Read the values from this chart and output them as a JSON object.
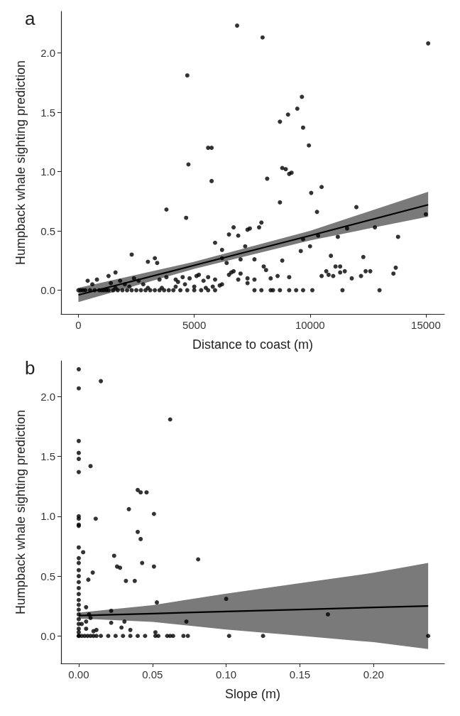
{
  "chart_data": [
    {
      "type": "scatter",
      "title": "a",
      "xlabel": "Distance to coast (m)",
      "ylabel": "Humpback whale sighting prediction",
      "xlim": [
        -750,
        15800
      ],
      "ylim": [
        -0.2,
        2.35
      ],
      "xticks": [
        0,
        5000,
        10000,
        15000
      ],
      "yticks": [
        {
          "value": 0,
          "label": "0.0"
        },
        {
          "value": 0.5,
          "label": "0.5"
        },
        {
          "value": 1,
          "label": "1.0"
        },
        {
          "value": 1.5,
          "label": "1.5"
        },
        {
          "value": 2,
          "label": "2.0"
        }
      ],
      "grid": false,
      "series": [
        {
          "marker": "circle",
          "color": "#000000",
          "x": [
            6850,
            7950,
            15100,
            4700,
            9650,
            9450,
            9050,
            8700,
            9700,
            5600,
            5750,
            4750,
            9950,
            5750,
            8150,
            8800,
            8950,
            9100,
            9200,
            10500,
            10050,
            3800,
            4650,
            8700,
            10300,
            12000,
            15000,
            11600,
            12800,
            7900,
            7800,
            7400,
            7300,
            6700,
            6900,
            6500,
            5900,
            6200,
            9700,
            10350,
            11200,
            13800,
            2300,
            3400,
            3300,
            3000,
            7200,
            6400,
            7000,
            6200,
            7600,
            8000,
            8100,
            8800,
            9600,
            10000,
            10900,
            11100,
            11300,
            11300,
            12300,
            12400,
            12600,
            13600,
            13700,
            11500,
            10700,
            10500,
            10800,
            11000,
            11800,
            12200,
            9100,
            7300,
            7300,
            7600,
            8300,
            8600,
            7000,
            6700,
            6600,
            6500,
            6900,
            5100,
            5200,
            5600,
            5900,
            6100,
            6200,
            5400,
            4800,
            4200,
            4500,
            4300,
            4600,
            3800,
            3500,
            2600,
            2400,
            1800,
            1600,
            1300,
            1400,
            800,
            400,
            600,
            2000,
            2800,
            0,
            100,
            200,
            300,
            500,
            700,
            900,
            1100,
            1200,
            1300,
            1500,
            1700,
            1900,
            2100,
            2300,
            2500,
            2700,
            2900,
            3100,
            3300,
            3500,
            3700,
            3900,
            4100,
            4400,
            4700,
            5000,
            5300,
            5600,
            5900,
            7600,
            7900,
            8300,
            8400,
            8700,
            9100,
            9400,
            9700,
            10100,
            11400,
            13000,
            1000,
            1600,
            2200,
            3000,
            3600,
            4200,
            5000,
            5500,
            5800
          ],
          "values": [
            2.23,
            2.13,
            2.08,
            1.81,
            1.63,
            1.53,
            1.48,
            1.42,
            1.37,
            1.2,
            1.2,
            1.06,
            1.22,
            0.92,
            0.94,
            1.03,
            1.02,
            0.98,
            0.99,
            0.87,
            0.82,
            0.68,
            0.61,
            0.74,
            0.66,
            0.7,
            0.64,
            0.52,
            0.53,
            0.57,
            0.53,
            0.52,
            0.51,
            0.53,
            0.46,
            0.47,
            0.4,
            0.34,
            0.43,
            0.46,
            0.45,
            0.45,
            0.3,
            0.23,
            0.27,
            0.24,
            0.37,
            0.23,
            0.26,
            0.27,
            0.26,
            0.2,
            0.17,
            0.25,
            0.33,
            0.37,
            0.29,
            0.2,
            0.2,
            0.15,
            0.28,
            0.16,
            0.16,
            0.14,
            0.19,
            0.16,
            0.16,
            0.12,
            0.13,
            0.12,
            0.1,
            0.12,
            0.11,
            0.1,
            0.06,
            0.09,
            0.1,
            0.12,
            0.14,
            0.16,
            0.15,
            0.13,
            0.09,
            0.12,
            0.13,
            0.11,
            0.09,
            0.04,
            0.05,
            0.08,
            0.1,
            0.09,
            0.11,
            0.07,
            0.05,
            0.11,
            0.09,
            0.08,
            0.1,
            0.08,
            0.15,
            0.12,
            0.06,
            0.09,
            0.08,
            0.05,
            0.05,
            0.05,
            0,
            0,
            0,
            0,
            0,
            0,
            0,
            0,
            0,
            0,
            0,
            0,
            0,
            0,
            0,
            0,
            0,
            0,
            0,
            0,
            0,
            0,
            0,
            0,
            0,
            0,
            0,
            0,
            0,
            0,
            0,
            0,
            0,
            0,
            0,
            0,
            0,
            0,
            0,
            0,
            0,
            0,
            0.02,
            0.03,
            0.02,
            0.02,
            0.03,
            0.03,
            0.02,
            0.03
          ]
        },
        {
          "type": "line",
          "color": "#000000",
          "x": [
            0,
            5000,
            10000,
            15100
          ],
          "values": [
            -0.04,
            0.21,
            0.46,
            0.72
          ],
          "lower": [
            -0.1,
            0.18,
            0.42,
            0.62
          ],
          "upper": [
            0.02,
            0.24,
            0.5,
            0.83
          ]
        }
      ]
    },
    {
      "type": "scatter",
      "title": "b",
      "xlabel": "Slope (m)",
      "ylabel": "Humpback whale sighting prediction",
      "xlim": [
        -0.012,
        0.248
      ],
      "ylim": [
        -0.23,
        2.3
      ],
      "xticks": [
        {
          "value": 0,
          "label": "0.00"
        },
        {
          "value": 0.05,
          "label": "0.05"
        },
        {
          "value": 0.1,
          "label": "0.10"
        },
        {
          "value": 0.15,
          "label": "0.15"
        },
        {
          "value": 0.2,
          "label": "0.20"
        }
      ],
      "yticks": [
        {
          "value": 0,
          "label": "0.0"
        },
        {
          "value": 0.5,
          "label": "0.5"
        },
        {
          "value": 1,
          "label": "1.0"
        },
        {
          "value": 1.5,
          "label": "1.5"
        },
        {
          "value": 2,
          "label": "2.0"
        }
      ],
      "grid": false,
      "series": [
        {
          "marker": "circle",
          "color": "#000000",
          "x": [
            0,
            0.015,
            0,
            0.062,
            0,
            0,
            0,
            0.008,
            0,
            0.04,
            0.042,
            0.046,
            0,
            0.034,
            0.051,
            0,
            0.0115,
            0,
            0,
            0.04,
            0.042,
            0,
            0.003,
            0.024,
            0,
            0,
            0.043,
            0.081,
            0.026,
            0.051,
            0.028,
            0.0065,
            0.0095,
            0.032,
            0.038,
            0.053,
            0.1,
            0.005,
            0.022,
            0.169,
            0.007,
            0.008,
            0.073,
            0.022,
            0.031,
            0.005,
            0.029,
            0.035,
            0.002,
            0,
            0,
            0,
            0,
            0,
            0,
            0,
            0,
            0,
            0,
            0,
            0,
            0,
            0,
            0,
            0.002,
            0.004,
            0.006,
            0.008,
            0.01,
            0.012,
            0.015,
            0.02,
            0.025,
            0.03,
            0.035,
            0.04,
            0.045,
            0.052,
            0.054,
            0.06,
            0.062,
            0.064,
            0.071,
            0.074,
            0.102,
            0.125,
            0.237,
            0.01,
            0.012,
            0.005,
            0.052
          ],
          "values": [
            2.23,
            2.13,
            2.07,
            1.81,
            1.63,
            1.53,
            1.48,
            1.42,
            1.37,
            1.22,
            1.2,
            1.2,
            1,
            1.06,
            1.02,
            0.98,
            0.98,
            0.93,
            0.92,
            0.87,
            0.81,
            0.74,
            0.7,
            0.67,
            0.65,
            0.61,
            0.61,
            0.64,
            0.58,
            0.58,
            0.57,
            0.47,
            0.53,
            0.46,
            0.46,
            0.28,
            0.31,
            0.24,
            0.21,
            0.18,
            0.18,
            0.15,
            0.12,
            0.11,
            0.12,
            0.12,
            0.07,
            0.05,
            0.1,
            0.55,
            0.5,
            0.45,
            0.4,
            0.35,
            0.3,
            0.26,
            0.22,
            0.18,
            0.14,
            0.1,
            0.06,
            0.03,
            0,
            0,
            0,
            0,
            0,
            0,
            0,
            0,
            0,
            0,
            0,
            0,
            0,
            0,
            0,
            0,
            0,
            0,
            0,
            0,
            0,
            0,
            0,
            0,
            0,
            0.04,
            0.05,
            0.06,
            0.03
          ]
        },
        {
          "type": "line",
          "color": "#000000",
          "x": [
            0,
            0.05,
            0.1,
            0.15,
            0.2,
            0.237
          ],
          "values": [
            0.17,
            0.187,
            0.204,
            0.221,
            0.238,
            0.25
          ],
          "lower": [
            0.145,
            0.117,
            0.054,
            0.001,
            -0.052,
            -0.11
          ],
          "upper": [
            0.195,
            0.257,
            0.354,
            0.441,
            0.528,
            0.61
          ]
        }
      ]
    }
  ]
}
